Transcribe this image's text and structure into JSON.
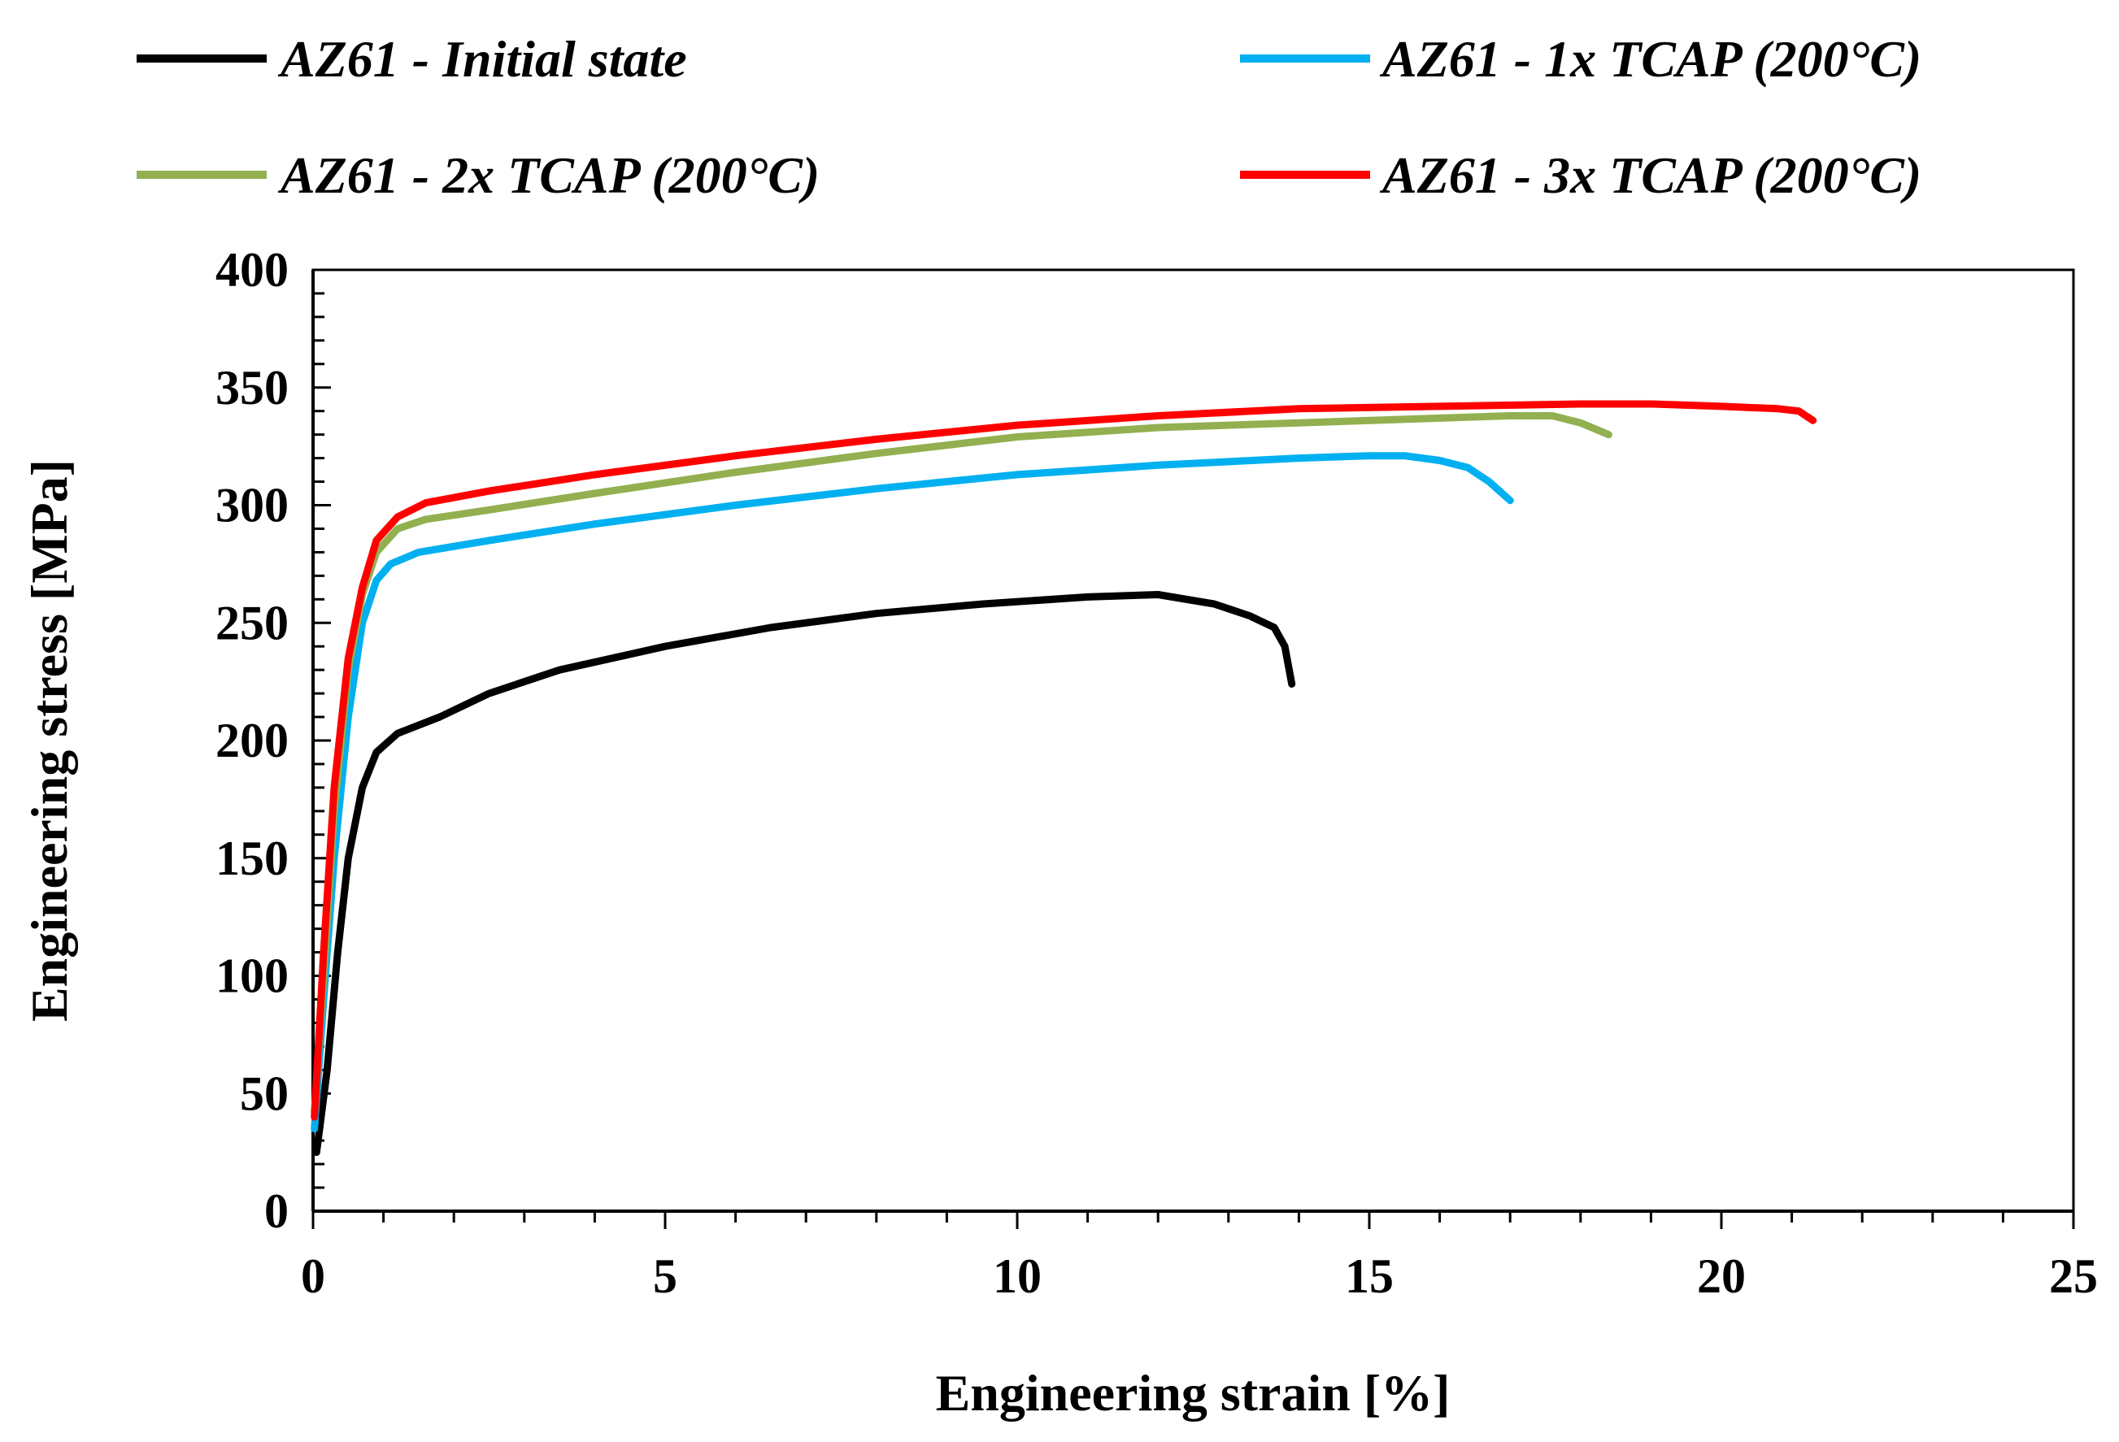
{
  "chart_data": {
    "type": "line",
    "title": "",
    "xlabel": "Engineering strain [%]",
    "ylabel": "Engineering stress [MPa]",
    "xlim": [
      0,
      25
    ],
    "ylim": [
      0,
      400
    ],
    "xticks": [
      0,
      5,
      10,
      15,
      20,
      25
    ],
    "yticks": [
      0,
      50,
      100,
      150,
      200,
      250,
      300,
      350,
      400
    ],
    "x_minor_step": 1,
    "y_minor_step": 10,
    "grid": false,
    "legend_position": "top",
    "series": [
      {
        "name": "AZ61 - Initial state",
        "color": "#000000",
        "points": [
          [
            0.05,
            25
          ],
          [
            0.2,
            60
          ],
          [
            0.35,
            110
          ],
          [
            0.5,
            150
          ],
          [
            0.7,
            180
          ],
          [
            0.9,
            195
          ],
          [
            1.2,
            203
          ],
          [
            1.8,
            210
          ],
          [
            2.5,
            220
          ],
          [
            3.5,
            230
          ],
          [
            5,
            240
          ],
          [
            6.5,
            248
          ],
          [
            8,
            254
          ],
          [
            9.5,
            258
          ],
          [
            11,
            261
          ],
          [
            12,
            262
          ],
          [
            12.8,
            258
          ],
          [
            13.3,
            253
          ],
          [
            13.65,
            248
          ],
          [
            13.8,
            240
          ],
          [
            13.85,
            232
          ],
          [
            13.9,
            224
          ]
        ]
      },
      {
        "name": "AZ61 - 1x TCAP (200°C)",
        "color": "#00B0F0",
        "points": [
          [
            0.02,
            35
          ],
          [
            0.15,
            90
          ],
          [
            0.3,
            150
          ],
          [
            0.5,
            210
          ],
          [
            0.7,
            250
          ],
          [
            0.9,
            268
          ],
          [
            1.1,
            275
          ],
          [
            1.5,
            280
          ],
          [
            2.5,
            285
          ],
          [
            4,
            292
          ],
          [
            6,
            300
          ],
          [
            8,
            307
          ],
          [
            10,
            313
          ],
          [
            12,
            317
          ],
          [
            14,
            320
          ],
          [
            15,
            321
          ],
          [
            15.5,
            321
          ],
          [
            16,
            319
          ],
          [
            16.4,
            316
          ],
          [
            16.7,
            310
          ],
          [
            17,
            302
          ]
        ]
      },
      {
        "name": "AZ61 - 2x TCAP (200°C)",
        "color": "#92B050",
        "points": [
          [
            0.02,
            42
          ],
          [
            0.15,
            100
          ],
          [
            0.3,
            170
          ],
          [
            0.5,
            230
          ],
          [
            0.7,
            262
          ],
          [
            0.9,
            280
          ],
          [
            1.2,
            290
          ],
          [
            1.6,
            294
          ],
          [
            2.5,
            298
          ],
          [
            4,
            305
          ],
          [
            6,
            314
          ],
          [
            8,
            322
          ],
          [
            10,
            329
          ],
          [
            12,
            333
          ],
          [
            14,
            335
          ],
          [
            16,
            337
          ],
          [
            17,
            338
          ],
          [
            17.6,
            338
          ],
          [
            18,
            335
          ],
          [
            18.4,
            330
          ]
        ]
      },
      {
        "name": "AZ61 - 3x TCAP (200°C)",
        "color": "#FF0000",
        "points": [
          [
            0.02,
            40
          ],
          [
            0.15,
            110
          ],
          [
            0.3,
            180
          ],
          [
            0.5,
            235
          ],
          [
            0.7,
            265
          ],
          [
            0.9,
            285
          ],
          [
            1.2,
            295
          ],
          [
            1.6,
            301
          ],
          [
            2.5,
            306
          ],
          [
            4,
            313
          ],
          [
            6,
            321
          ],
          [
            8,
            328
          ],
          [
            10,
            334
          ],
          [
            12,
            338
          ],
          [
            14,
            341
          ],
          [
            16,
            342
          ],
          [
            18,
            343
          ],
          [
            19,
            343
          ],
          [
            20,
            342
          ],
          [
            20.8,
            341
          ],
          [
            21.1,
            340
          ],
          [
            21.3,
            336
          ]
        ]
      }
    ]
  }
}
